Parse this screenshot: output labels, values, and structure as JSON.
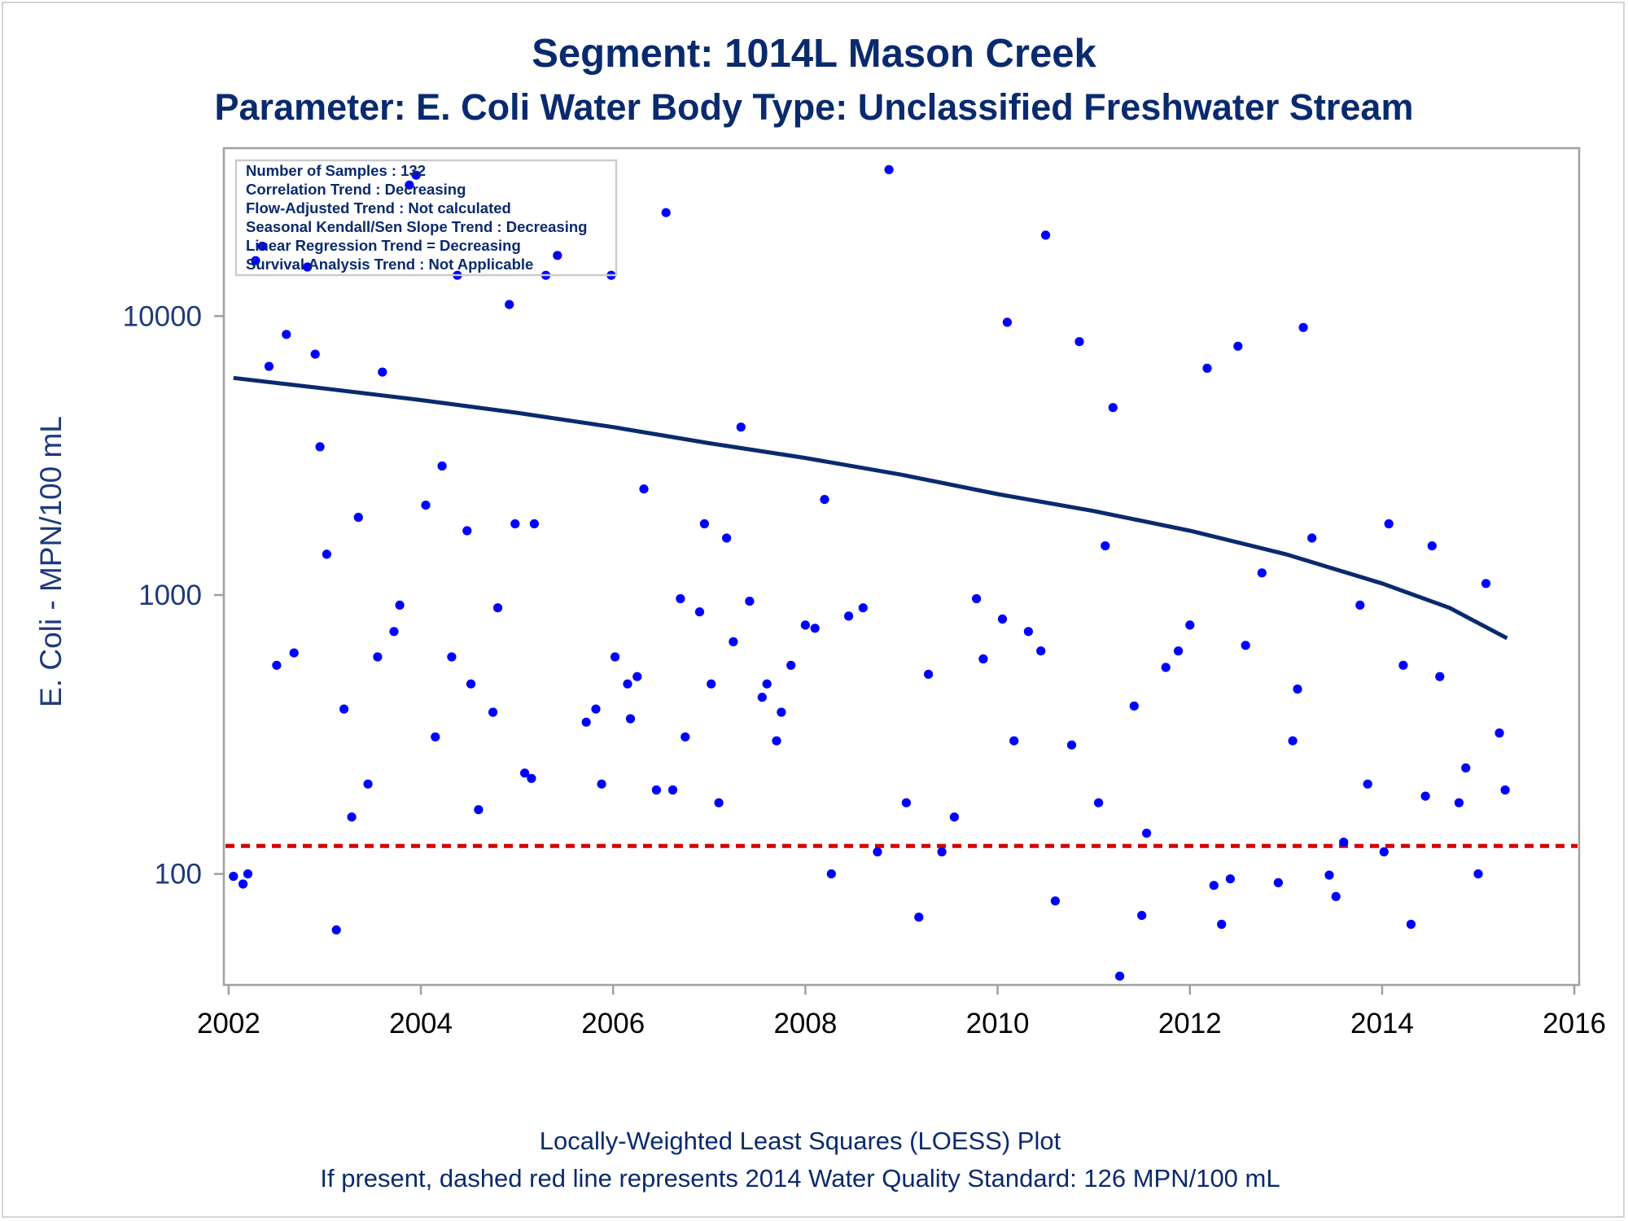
{
  "colors": {
    "title": "#0a2a6e",
    "points": "#0000ff",
    "loess": "#0a2a6e",
    "standard_line": "#d40000",
    "plot_border": "#a0a0a0"
  },
  "chart_data": {
    "type": "scatter",
    "title": "Segment: 1014L  Mason Creek",
    "subtitle": "Parameter: E. Coli   Water Body Type: Unclassified Freshwater Stream",
    "xlabel": "",
    "ylabel": "E. Coli - MPN/100 mL",
    "xlim": [
      2001.95,
      2016.05
    ],
    "ylim": [
      40,
      40000
    ],
    "yscale": "log",
    "xticks": [
      2002,
      2004,
      2006,
      2008,
      2010,
      2012,
      2014,
      2016
    ],
    "yticks": [
      100,
      1000,
      10000
    ],
    "grid": false,
    "legend": "none",
    "info_box": {
      "placement": "top-left",
      "lines": [
        "Number of Samples : 132",
        "Correlation Trend : Decreasing",
        "Flow-Adjusted Trend : Not calculated",
        "Seasonal Kendall/Sen Slope Trend : Decreasing",
        "Linear Regression Trend = Decreasing",
        "Survival Analysis Trend : Not Applicable"
      ]
    },
    "footnotes": [
      "Locally-Weighted Least Squares (LOESS) Plot",
      "If present, dashed red line represents 2014 Water Quality Standard: 126 MPN/100 mL"
    ],
    "standard": 126,
    "loess": {
      "x": [
        2002.05,
        2003,
        2004,
        2005,
        2006,
        2007,
        2008,
        2009,
        2010,
        2011,
        2012,
        2013,
        2014,
        2014.7,
        2015.3
      ],
      "y": [
        6000,
        5500,
        5000,
        4500,
        4000,
        3500,
        3100,
        2700,
        2300,
        2000,
        1700,
        1400,
        1100,
        900,
        700
      ]
    },
    "points": {
      "x": [
        2002.05,
        2002.15,
        2002.2,
        2002.28,
        2002.35,
        2002.42,
        2002.5,
        2002.6,
        2002.68,
        2002.82,
        2002.9,
        2002.95,
        2003.02,
        2003.12,
        2003.2,
        2003.28,
        2003.35,
        2003.45,
        2003.55,
        2003.6,
        2003.72,
        2003.78,
        2003.88,
        2003.95,
        2004.05,
        2004.15,
        2004.22,
        2004.32,
        2004.38,
        2004.48,
        2004.52,
        2004.6,
        2004.75,
        2004.8,
        2004.92,
        2004.98,
        2005.08,
        2005.15,
        2005.18,
        2005.3,
        2005.42,
        2005.72,
        2005.82,
        2005.88,
        2005.98,
        2006.02,
        2006.15,
        2006.18,
        2006.25,
        2006.32,
        2006.45,
        2006.55,
        2006.62,
        2006.7,
        2006.75,
        2006.9,
        2006.95,
        2007.02,
        2007.1,
        2007.18,
        2007.25,
        2007.33,
        2007.42,
        2007.55,
        2007.6,
        2007.7,
        2007.75,
        2007.85,
        2008.0,
        2008.1,
        2008.2,
        2008.27,
        2008.45,
        2008.6,
        2008.75,
        2008.87,
        2009.05,
        2009.18,
        2009.28,
        2009.42,
        2009.55,
        2009.78,
        2009.85,
        2010.05,
        2010.1,
        2010.17,
        2010.32,
        2010.45,
        2010.5,
        2010.6,
        2010.77,
        2010.85,
        2011.05,
        2011.12,
        2011.2,
        2011.27,
        2011.42,
        2011.5,
        2011.55,
        2011.75,
        2011.88,
        2012.0,
        2012.18,
        2012.25,
        2012.33,
        2012.42,
        2012.5,
        2012.58,
        2012.75,
        2012.92,
        2013.07,
        2013.12,
        2013.18,
        2013.27,
        2013.45,
        2013.52,
        2013.6,
        2013.77,
        2013.85,
        2014.02,
        2014.07,
        2014.22,
        2014.3,
        2014.45,
        2014.52,
        2014.6,
        2014.8,
        2014.87,
        2015.0,
        2015.08,
        2015.22,
        2015.28
      ],
      "y": [
        98,
        92,
        100,
        15800,
        17800,
        6600,
        560,
        8600,
        620,
        15000,
        7300,
        3400,
        1400,
        63,
        390,
        160,
        1900,
        210,
        600,
        6300,
        740,
        920,
        29500,
        32000,
        2100,
        310,
        2900,
        600,
        14000,
        1700,
        480,
        170,
        380,
        900,
        11000,
        1800,
        230,
        220,
        1800,
        14000,
        16500,
        350,
        390,
        210,
        14000,
        600,
        480,
        360,
        510,
        2400,
        200,
        23500,
        200,
        970,
        310,
        870,
        1800,
        480,
        180,
        1600,
        680,
        4000,
        950,
        430,
        480,
        300,
        380,
        560,
        780,
        760,
        2200,
        100,
        840,
        900,
        120,
        33500,
        180,
        70,
        520,
        120,
        160,
        970,
        590,
        820,
        9500,
        300,
        740,
        630,
        19500,
        80,
        290,
        8100,
        180,
        1500,
        4700,
        43,
        400,
        71,
        140,
        550,
        630,
        780,
        6500,
        91,
        66,
        96,
        7800,
        660,
        1200,
        93,
        300,
        460,
        9100,
        1600,
        99,
        83,
        130,
        920,
        210,
        120,
        1800,
        560,
        66,
        190,
        1500,
        510,
        180,
        240,
        100,
        1100,
        320,
        200
      ]
    }
  }
}
